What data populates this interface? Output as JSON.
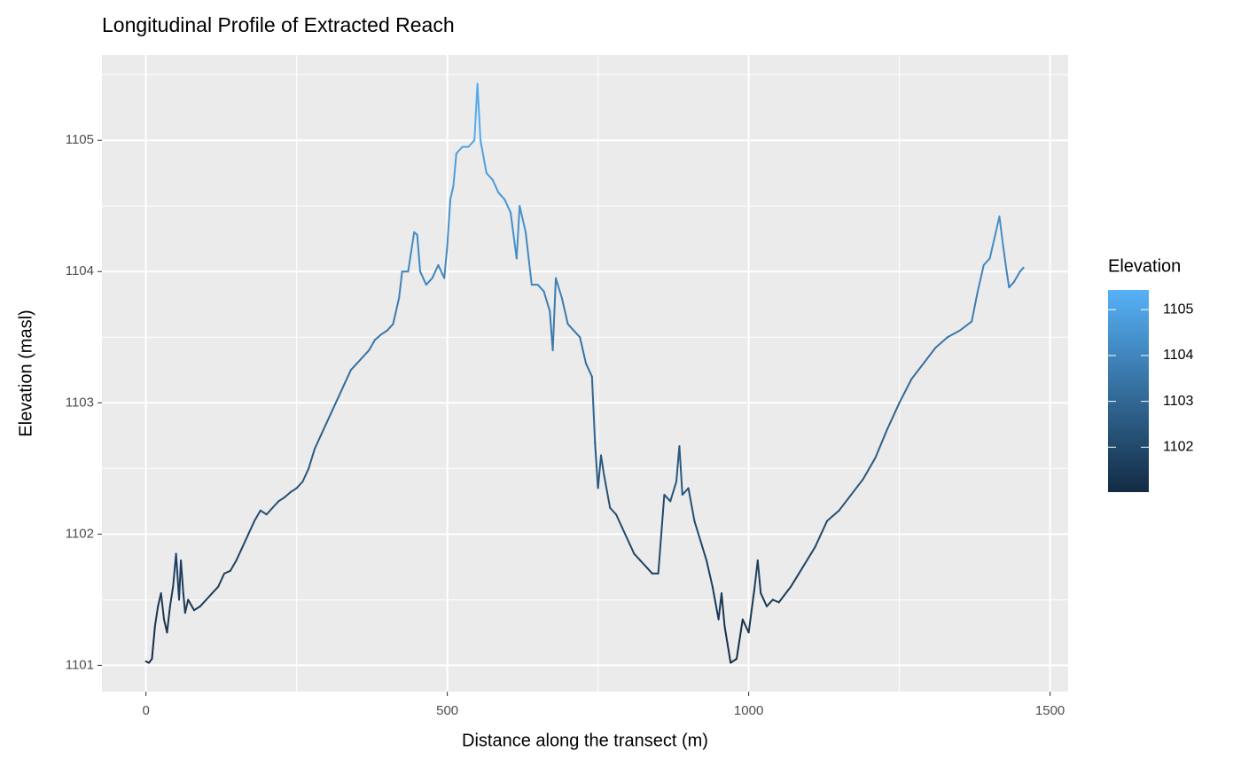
{
  "chart_data": {
    "type": "line",
    "title": "Longitudinal Profile of Extracted Reach",
    "x_label": "Distance along the transect (m)",
    "y_label": "Elevation (masl)",
    "legend_title": "Elevation",
    "x": [
      0,
      5,
      10,
      15,
      20,
      25,
      30,
      35,
      40,
      45,
      50,
      55,
      58,
      62,
      65,
      70,
      80,
      90,
      100,
      110,
      120,
      130,
      140,
      150,
      160,
      170,
      180,
      190,
      200,
      210,
      220,
      230,
      240,
      250,
      260,
      270,
      280,
      290,
      300,
      310,
      320,
      330,
      340,
      350,
      360,
      370,
      380,
      390,
      400,
      410,
      420,
      425,
      435,
      440,
      445,
      450,
      455,
      465,
      475,
      485,
      495,
      500,
      505,
      510,
      515,
      525,
      535,
      545,
      550,
      555,
      565,
      575,
      585,
      595,
      605,
      615,
      620,
      630,
      640,
      650,
      660,
      670,
      675,
      680,
      690,
      700,
      710,
      720,
      730,
      740,
      745,
      750,
      755,
      760,
      770,
      780,
      790,
      800,
      810,
      820,
      830,
      840,
      850,
      860,
      870,
      880,
      885,
      890,
      900,
      910,
      920,
      930,
      940,
      950,
      955,
      960,
      970,
      980,
      990,
      1000,
      1010,
      1015,
      1020,
      1030,
      1040,
      1050,
      1070,
      1090,
      1110,
      1130,
      1150,
      1170,
      1190,
      1210,
      1230,
      1250,
      1270,
      1290,
      1310,
      1330,
      1350,
      1370,
      1380,
      1390,
      1400,
      1410,
      1416,
      1422,
      1428,
      1432,
      1440,
      1450,
      1456
    ],
    "values": [
      1101.03,
      1101.02,
      1101.05,
      1101.3,
      1101.45,
      1101.55,
      1101.35,
      1101.25,
      1101.45,
      1101.6,
      1101.85,
      1101.5,
      1101.8,
      1101.55,
      1101.4,
      1101.5,
      1101.42,
      1101.45,
      1101.5,
      1101.55,
      1101.6,
      1101.7,
      1101.72,
      1101.8,
      1101.9,
      1102.0,
      1102.1,
      1102.18,
      1102.15,
      1102.2,
      1102.25,
      1102.28,
      1102.32,
      1102.35,
      1102.4,
      1102.5,
      1102.65,
      1102.75,
      1102.85,
      1102.95,
      1103.05,
      1103.15,
      1103.25,
      1103.3,
      1103.35,
      1103.4,
      1103.48,
      1103.52,
      1103.55,
      1103.6,
      1103.8,
      1104.0,
      1104.0,
      1104.15,
      1104.3,
      1104.28,
      1104.0,
      1103.9,
      1103.95,
      1104.05,
      1103.95,
      1104.2,
      1104.55,
      1104.65,
      1104.9,
      1104.95,
      1104.95,
      1105.0,
      1105.43,
      1105.0,
      1104.75,
      1104.7,
      1104.6,
      1104.55,
      1104.45,
      1104.1,
      1104.5,
      1104.3,
      1103.9,
      1103.9,
      1103.85,
      1103.7,
      1103.4,
      1103.95,
      1103.8,
      1103.6,
      1103.55,
      1103.5,
      1103.3,
      1103.2,
      1102.7,
      1102.35,
      1102.6,
      1102.45,
      1102.2,
      1102.15,
      1102.05,
      1101.95,
      1101.85,
      1101.8,
      1101.75,
      1101.7,
      1101.7,
      1102.3,
      1102.25,
      1102.4,
      1102.67,
      1102.3,
      1102.35,
      1102.1,
      1101.95,
      1101.8,
      1101.6,
      1101.35,
      1101.55,
      1101.3,
      1101.02,
      1101.05,
      1101.35,
      1101.25,
      1101.6,
      1101.8,
      1101.55,
      1101.45,
      1101.5,
      1101.48,
      1101.6,
      1101.75,
      1101.9,
      1102.1,
      1102.18,
      1102.3,
      1102.42,
      1102.58,
      1102.8,
      1103.0,
      1103.18,
      1103.3,
      1103.42,
      1103.5,
      1103.55,
      1103.62,
      1103.85,
      1104.05,
      1104.1,
      1104.3,
      1104.42,
      1104.2,
      1104.0,
      1103.88,
      1103.92,
      1104.0,
      1104.03
    ],
    "xlim": [
      -73,
      1530
    ],
    "xticks": [
      0,
      500,
      1000,
      1500
    ],
    "x_minor_ticks": [
      250,
      750,
      1250
    ],
    "ylim": [
      1100.8,
      1105.65
    ],
    "yticks": [
      1101,
      1102,
      1103,
      1104,
      1105
    ],
    "y_minor_ticks": [
      1101.5,
      1102.5,
      1103.5,
      1104.5,
      1105.5
    ],
    "grid": true,
    "color_low": "#132B43",
    "color_high": "#56B1F7",
    "legend_ticks": [
      1102,
      1103,
      1104,
      1105
    ]
  }
}
